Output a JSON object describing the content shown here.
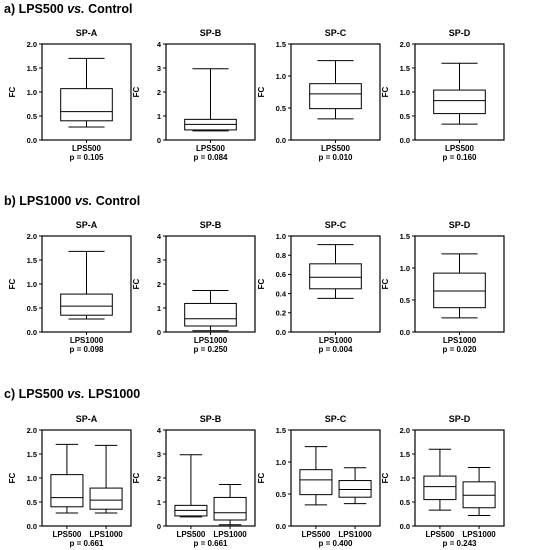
{
  "sections": [
    {
      "prefix": "a) LPS500 ",
      "vs": "vs.",
      "suffix": " Control",
      "panels": [
        {
          "title": "SP-A",
          "ylabel": "FC",
          "ylim": [
            0,
            2.0
          ],
          "yticks": [
            "0.0",
            "0.5",
            "1.0",
            "1.5",
            "2.0"
          ],
          "yvals": [
            0,
            0.5,
            1,
            1.5,
            2
          ],
          "categories": [
            "LPS500"
          ],
          "boxes": [
            {
              "min": 0.27,
              "q1": 0.4,
              "median": 0.59,
              "q3": 1.07,
              "max": 1.7
            }
          ],
          "pvalue": "p = 0.105"
        },
        {
          "title": "SP-B",
          "ylabel": "FC",
          "ylim": [
            0,
            4
          ],
          "yticks": [
            "0",
            "1",
            "2",
            "3",
            "4"
          ],
          "yvals": [
            0,
            1,
            2,
            3,
            4
          ],
          "categories": [
            "LPS500"
          ],
          "boxes": [
            {
              "min": 0.38,
              "q1": 0.42,
              "median": 0.65,
              "q3": 0.86,
              "max": 2.97
            }
          ],
          "pvalue": "p = 0.084"
        },
        {
          "title": "SP-C",
          "ylabel": "FC",
          "ylim": [
            0,
            1.5
          ],
          "yticks": [
            "0.0",
            "0.5",
            "1.0",
            "1.5"
          ],
          "yvals": [
            0,
            0.5,
            1,
            1.5
          ],
          "categories": [
            "LPS500"
          ],
          "boxes": [
            {
              "min": 0.33,
              "q1": 0.49,
              "median": 0.72,
              "q3": 0.88,
              "max": 1.24
            }
          ],
          "pvalue": "p = 0.010"
        },
        {
          "title": "SP-D",
          "ylabel": "FC",
          "ylim": [
            0,
            2.0
          ],
          "yticks": [
            "0.0",
            "0.5",
            "1.0",
            "1.5",
            "2.0"
          ],
          "yvals": [
            0,
            0.5,
            1,
            1.5,
            2
          ],
          "categories": [
            "LPS500"
          ],
          "boxes": [
            {
              "min": 0.33,
              "q1": 0.55,
              "median": 0.82,
              "q3": 1.04,
              "max": 1.6
            }
          ],
          "pvalue": "p = 0.160"
        }
      ]
    },
    {
      "prefix": "b) LPS1000 ",
      "vs": "vs.",
      "suffix": " Control",
      "panels": [
        {
          "title": "SP-A",
          "ylabel": "FC",
          "ylim": [
            0,
            2.0
          ],
          "yticks": [
            "0.0",
            "0.5",
            "1.0",
            "1.5",
            "2.0"
          ],
          "yvals": [
            0,
            0.5,
            1,
            1.5,
            2
          ],
          "categories": [
            "LPS1000"
          ],
          "boxes": [
            {
              "min": 0.27,
              "q1": 0.35,
              "median": 0.54,
              "q3": 0.79,
              "max": 1.68
            }
          ],
          "pvalue": "p = 0.098"
        },
        {
          "title": "SP-B",
          "ylabel": "FC",
          "ylim": [
            0,
            4
          ],
          "yticks": [
            "0",
            "1",
            "2",
            "3",
            "4"
          ],
          "yvals": [
            0,
            1,
            2,
            3,
            4
          ],
          "categories": [
            "LPS1000"
          ],
          "boxes": [
            {
              "min": 0.05,
              "q1": 0.25,
              "median": 0.55,
              "q3": 1.19,
              "max": 1.73
            }
          ],
          "pvalue": "p = 0.250"
        },
        {
          "title": "SP-C",
          "ylabel": "FC",
          "ylim": [
            0,
            1.0
          ],
          "yticks": [
            "0.0",
            "0.2",
            "0.4",
            "0.6",
            "0.8",
            "1.0"
          ],
          "yvals": [
            0,
            0.2,
            0.4,
            0.6,
            0.8,
            1.0
          ],
          "categories": [
            "LPS1000"
          ],
          "boxes": [
            {
              "min": 0.35,
              "q1": 0.45,
              "median": 0.57,
              "q3": 0.71,
              "max": 0.91
            }
          ],
          "pvalue": "p = 0.004"
        },
        {
          "title": "SP-D",
          "ylabel": "FC",
          "ylim": [
            0,
            1.5
          ],
          "yticks": [
            "0.0",
            "0.5",
            "1.0",
            "1.5"
          ],
          "yvals": [
            0,
            0.5,
            1,
            1.5
          ],
          "categories": [
            "LPS1000"
          ],
          "boxes": [
            {
              "min": 0.22,
              "q1": 0.38,
              "median": 0.64,
              "q3": 0.92,
              "max": 1.22
            }
          ],
          "pvalue": "p = 0.020"
        }
      ]
    },
    {
      "prefix": "c) LPS500 ",
      "vs": "vs.",
      "suffix": " LPS1000",
      "panels": [
        {
          "title": "SP-A",
          "ylabel": "FC",
          "ylim": [
            0,
            2.0
          ],
          "yticks": [
            "0.0",
            "0.5",
            "1.0",
            "1.5",
            "2.0"
          ],
          "yvals": [
            0,
            0.5,
            1,
            1.5,
            2
          ],
          "categories": [
            "LPS500",
            "LPS1000"
          ],
          "boxes": [
            {
              "min": 0.27,
              "q1": 0.4,
              "median": 0.59,
              "q3": 1.07,
              "max": 1.7
            },
            {
              "min": 0.27,
              "q1": 0.35,
              "median": 0.54,
              "q3": 0.79,
              "max": 1.68
            }
          ],
          "pvalue": "p = 0.661"
        },
        {
          "title": "SP-B",
          "ylabel": "FC",
          "ylim": [
            0,
            4
          ],
          "yticks": [
            "0",
            "1",
            "2",
            "3",
            "4"
          ],
          "yvals": [
            0,
            1,
            2,
            3,
            4
          ],
          "categories": [
            "LPS500",
            "LPS1000"
          ],
          "boxes": [
            {
              "min": 0.38,
              "q1": 0.42,
              "median": 0.65,
              "q3": 0.86,
              "max": 2.97
            },
            {
              "min": 0.05,
              "q1": 0.25,
              "median": 0.55,
              "q3": 1.19,
              "max": 1.73
            }
          ],
          "pvalue": "p = 0.661"
        },
        {
          "title": "SP-C",
          "ylabel": "FC",
          "ylim": [
            0,
            1.5
          ],
          "yticks": [
            "0.0",
            "0.5",
            "1.0",
            "1.5"
          ],
          "yvals": [
            0,
            0.5,
            1,
            1.5
          ],
          "categories": [
            "LPS500",
            "LPS1000"
          ],
          "boxes": [
            {
              "min": 0.33,
              "q1": 0.49,
              "median": 0.72,
              "q3": 0.88,
              "max": 1.24
            },
            {
              "min": 0.35,
              "q1": 0.45,
              "median": 0.57,
              "q3": 0.71,
              "max": 0.91
            }
          ],
          "pvalue": "p = 0.400"
        },
        {
          "title": "SP-D",
          "ylabel": "FC",
          "ylim": [
            0,
            2.0
          ],
          "yticks": [
            "0.0",
            "0.5",
            "1.0",
            "1.5",
            "2.0"
          ],
          "yvals": [
            0,
            0.5,
            1,
            1.5,
            2
          ],
          "categories": [
            "LPS500",
            "LPS1000"
          ],
          "boxes": [
            {
              "min": 0.33,
              "q1": 0.55,
              "median": 0.82,
              "q3": 1.04,
              "max": 1.6
            },
            {
              "min": 0.22,
              "q1": 0.38,
              "median": 0.64,
              "q3": 0.92,
              "max": 1.22
            }
          ],
          "pvalue": "p = 0.243"
        }
      ]
    }
  ],
  "chart_data": [
    {
      "type": "box",
      "title": "SP-A",
      "ylabel": "FC",
      "ylim": [
        0,
        2.0
      ],
      "categories": [
        "LPS500"
      ],
      "values": [
        {
          "min": 0.27,
          "q1": 0.4,
          "median": 0.59,
          "q3": 1.07,
          "max": 1.7
        }
      ]
    },
    {
      "type": "box",
      "title": "SP-B",
      "ylabel": "FC",
      "ylim": [
        0,
        4
      ],
      "categories": [
        "LPS500"
      ],
      "values": [
        {
          "min": 0.38,
          "q1": 0.42,
          "median": 0.65,
          "q3": 0.86,
          "max": 2.97
        }
      ]
    },
    {
      "type": "box",
      "title": "SP-C",
      "ylabel": "FC",
      "ylim": [
        0,
        1.5
      ],
      "categories": [
        "LPS500"
      ],
      "values": [
        {
          "min": 0.33,
          "q1": 0.49,
          "median": 0.72,
          "q3": 0.88,
          "max": 1.24
        }
      ]
    },
    {
      "type": "box",
      "title": "SP-D",
      "ylabel": "FC",
      "ylim": [
        0,
        2.0
      ],
      "categories": [
        "LPS500"
      ],
      "values": [
        {
          "min": 0.33,
          "q1": 0.55,
          "median": 0.82,
          "q3": 1.04,
          "max": 1.6
        }
      ]
    },
    {
      "type": "box",
      "title": "SP-A",
      "ylabel": "FC",
      "ylim": [
        0,
        2.0
      ],
      "categories": [
        "LPS1000"
      ],
      "values": [
        {
          "min": 0.27,
          "q1": 0.35,
          "median": 0.54,
          "q3": 0.79,
          "max": 1.68
        }
      ]
    },
    {
      "type": "box",
      "title": "SP-B",
      "ylabel": "FC",
      "ylim": [
        0,
        4
      ],
      "categories": [
        "LPS1000"
      ],
      "values": [
        {
          "min": 0.05,
          "q1": 0.25,
          "median": 0.55,
          "q3": 1.19,
          "max": 1.73
        }
      ]
    },
    {
      "type": "box",
      "title": "SP-C",
      "ylabel": "FC",
      "ylim": [
        0,
        1.0
      ],
      "categories": [
        "LPS1000"
      ],
      "values": [
        {
          "min": 0.35,
          "q1": 0.45,
          "median": 0.57,
          "q3": 0.71,
          "max": 0.91
        }
      ]
    },
    {
      "type": "box",
      "title": "SP-D",
      "ylabel": "FC",
      "ylim": [
        0,
        1.5
      ],
      "categories": [
        "LPS1000"
      ],
      "values": [
        {
          "min": 0.22,
          "q1": 0.38,
          "median": 0.64,
          "q3": 0.92,
          "max": 1.22
        }
      ]
    },
    {
      "type": "box",
      "title": "SP-A",
      "ylabel": "FC",
      "ylim": [
        0,
        2.0
      ],
      "categories": [
        "LPS500",
        "LPS1000"
      ],
      "values": [
        {
          "min": 0.27,
          "q1": 0.4,
          "median": 0.59,
          "q3": 1.07,
          "max": 1.7
        },
        {
          "min": 0.27,
          "q1": 0.35,
          "median": 0.54,
          "q3": 0.79,
          "max": 1.68
        }
      ]
    },
    {
      "type": "box",
      "title": "SP-B",
      "ylabel": "FC",
      "ylim": [
        0,
        4
      ],
      "categories": [
        "LPS500",
        "LPS1000"
      ],
      "values": [
        {
          "min": 0.38,
          "q1": 0.42,
          "median": 0.65,
          "q3": 0.86,
          "max": 2.97
        },
        {
          "min": 0.05,
          "q1": 0.25,
          "median": 0.55,
          "q3": 1.19,
          "max": 1.73
        }
      ]
    },
    {
      "type": "box",
      "title": "SP-C",
      "ylabel": "FC",
      "ylim": [
        0,
        1.5
      ],
      "categories": [
        "LPS500",
        "LPS1000"
      ],
      "values": [
        {
          "min": 0.33,
          "q1": 0.49,
          "median": 0.72,
          "q3": 0.88,
          "max": 1.24
        },
        {
          "min": 0.35,
          "q1": 0.45,
          "median": 0.57,
          "q3": 0.71,
          "max": 0.91
        }
      ]
    },
    {
      "type": "box",
      "title": "SP-D",
      "ylabel": "FC",
      "ylim": [
        0,
        2.0
      ],
      "categories": [
        "LPS500",
        "LPS1000"
      ],
      "values": [
        {
          "min": 0.33,
          "q1": 0.55,
          "median": 0.82,
          "q3": 1.04,
          "max": 1.6
        },
        {
          "min": 0.22,
          "q1": 0.38,
          "median": 0.64,
          "q3": 0.92,
          "max": 1.22
        }
      ]
    }
  ]
}
